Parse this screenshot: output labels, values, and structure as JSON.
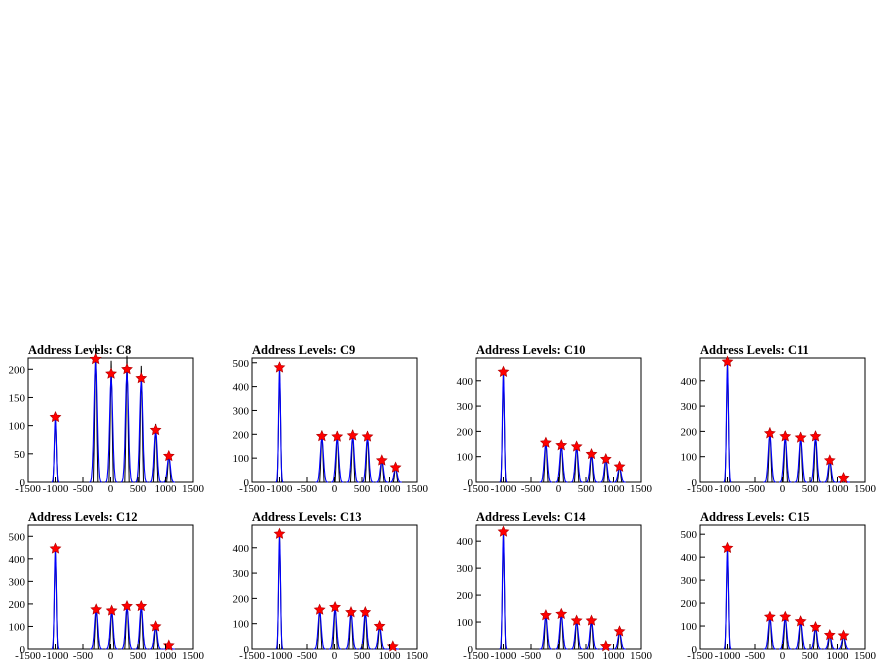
{
  "colors": {
    "histogram": "#000000",
    "fit": "#0000ff",
    "marker": "#ff0000",
    "frame": "#000000"
  },
  "x_ticks": [
    -1500,
    -1000,
    -500,
    0,
    500,
    1000,
    1500
  ],
  "x_tick_labels": [
    "-1500",
    "-1000",
    "-500",
    "0",
    "500",
    "1000",
    "1500"
  ],
  "chart_data": [
    {
      "type": "histogram",
      "title": "Address Levels: C8",
      "xlim": [
        -1500,
        1500
      ],
      "ylim": [
        0,
        220
      ],
      "yticks": [
        0,
        50,
        100,
        150,
        200
      ],
      "peaks": [
        {
          "x": -1000,
          "y": 115
        },
        {
          "x": -270,
          "y": 218
        },
        {
          "x": 10,
          "y": 192
        },
        {
          "x": 300,
          "y": 200
        },
        {
          "x": 560,
          "y": 184
        },
        {
          "x": 820,
          "y": 92
        },
        {
          "x": 1060,
          "y": 46
        }
      ]
    },
    {
      "type": "histogram",
      "title": "Address Levels: C9",
      "xlim": [
        -1500,
        1500
      ],
      "ylim": [
        0,
        520
      ],
      "yticks": [
        0,
        100,
        200,
        300,
        400,
        500
      ],
      "peaks": [
        {
          "x": -1000,
          "y": 480
        },
        {
          "x": -230,
          "y": 192
        },
        {
          "x": 50,
          "y": 190
        },
        {
          "x": 330,
          "y": 195
        },
        {
          "x": 600,
          "y": 190
        },
        {
          "x": 860,
          "y": 90
        },
        {
          "x": 1110,
          "y": 60
        }
      ]
    },
    {
      "type": "histogram",
      "title": "Address Levels: C10",
      "xlim": [
        -1500,
        1500
      ],
      "ylim": [
        0,
        490
      ],
      "yticks": [
        0,
        100,
        200,
        300,
        400
      ],
      "peaks": [
        {
          "x": -1000,
          "y": 435
        },
        {
          "x": -230,
          "y": 155
        },
        {
          "x": 50,
          "y": 145
        },
        {
          "x": 330,
          "y": 140
        },
        {
          "x": 600,
          "y": 110
        },
        {
          "x": 860,
          "y": 90
        },
        {
          "x": 1110,
          "y": 60
        }
      ]
    },
    {
      "type": "histogram",
      "title": "Address Levels: C11",
      "xlim": [
        -1500,
        1500
      ],
      "ylim": [
        0,
        490
      ],
      "yticks": [
        0,
        100,
        200,
        300,
        400
      ],
      "peaks": [
        {
          "x": -1000,
          "y": 475
        },
        {
          "x": -230,
          "y": 192
        },
        {
          "x": 50,
          "y": 180
        },
        {
          "x": 330,
          "y": 175
        },
        {
          "x": 600,
          "y": 180
        },
        {
          "x": 860,
          "y": 85
        },
        {
          "x": 1110,
          "y": 15
        }
      ]
    },
    {
      "type": "histogram",
      "title": "Address Levels: C12",
      "xlim": [
        -1500,
        1500
      ],
      "ylim": [
        0,
        550
      ],
      "yticks": [
        0,
        100,
        200,
        300,
        400,
        500
      ],
      "peaks": [
        {
          "x": -1000,
          "y": 445
        },
        {
          "x": -260,
          "y": 175
        },
        {
          "x": 20,
          "y": 170
        },
        {
          "x": 300,
          "y": 190
        },
        {
          "x": 560,
          "y": 190
        },
        {
          "x": 820,
          "y": 100
        },
        {
          "x": 1060,
          "y": 15
        }
      ]
    },
    {
      "type": "histogram",
      "title": "Address Levels: C13",
      "xlim": [
        -1500,
        1500
      ],
      "ylim": [
        0,
        490
      ],
      "yticks": [
        0,
        100,
        200,
        300,
        400
      ],
      "peaks": [
        {
          "x": -1000,
          "y": 455
        },
        {
          "x": -270,
          "y": 155
        },
        {
          "x": 10,
          "y": 165
        },
        {
          "x": 300,
          "y": 145
        },
        {
          "x": 560,
          "y": 145
        },
        {
          "x": 820,
          "y": 90
        },
        {
          "x": 1060,
          "y": 10
        }
      ]
    },
    {
      "type": "histogram",
      "title": "Address Levels: C14",
      "xlim": [
        -1500,
        1500
      ],
      "ylim": [
        0,
        460
      ],
      "yticks": [
        0,
        100,
        200,
        300,
        400
      ],
      "peaks": [
        {
          "x": -1000,
          "y": 435
        },
        {
          "x": -230,
          "y": 125
        },
        {
          "x": 50,
          "y": 130
        },
        {
          "x": 330,
          "y": 105
        },
        {
          "x": 600,
          "y": 105
        },
        {
          "x": 860,
          "y": 10
        },
        {
          "x": 1110,
          "y": 65
        }
      ]
    },
    {
      "type": "histogram",
      "title": "Address Levels: C15",
      "xlim": [
        -1500,
        1500
      ],
      "ylim": [
        0,
        540
      ],
      "yticks": [
        0,
        100,
        200,
        300,
        400,
        500
      ],
      "peaks": [
        {
          "x": -1000,
          "y": 440
        },
        {
          "x": -230,
          "y": 140
        },
        {
          "x": 50,
          "y": 140
        },
        {
          "x": 330,
          "y": 120
        },
        {
          "x": 600,
          "y": 95
        },
        {
          "x": 860,
          "y": 60
        },
        {
          "x": 1110,
          "y": 58
        }
      ]
    }
  ]
}
